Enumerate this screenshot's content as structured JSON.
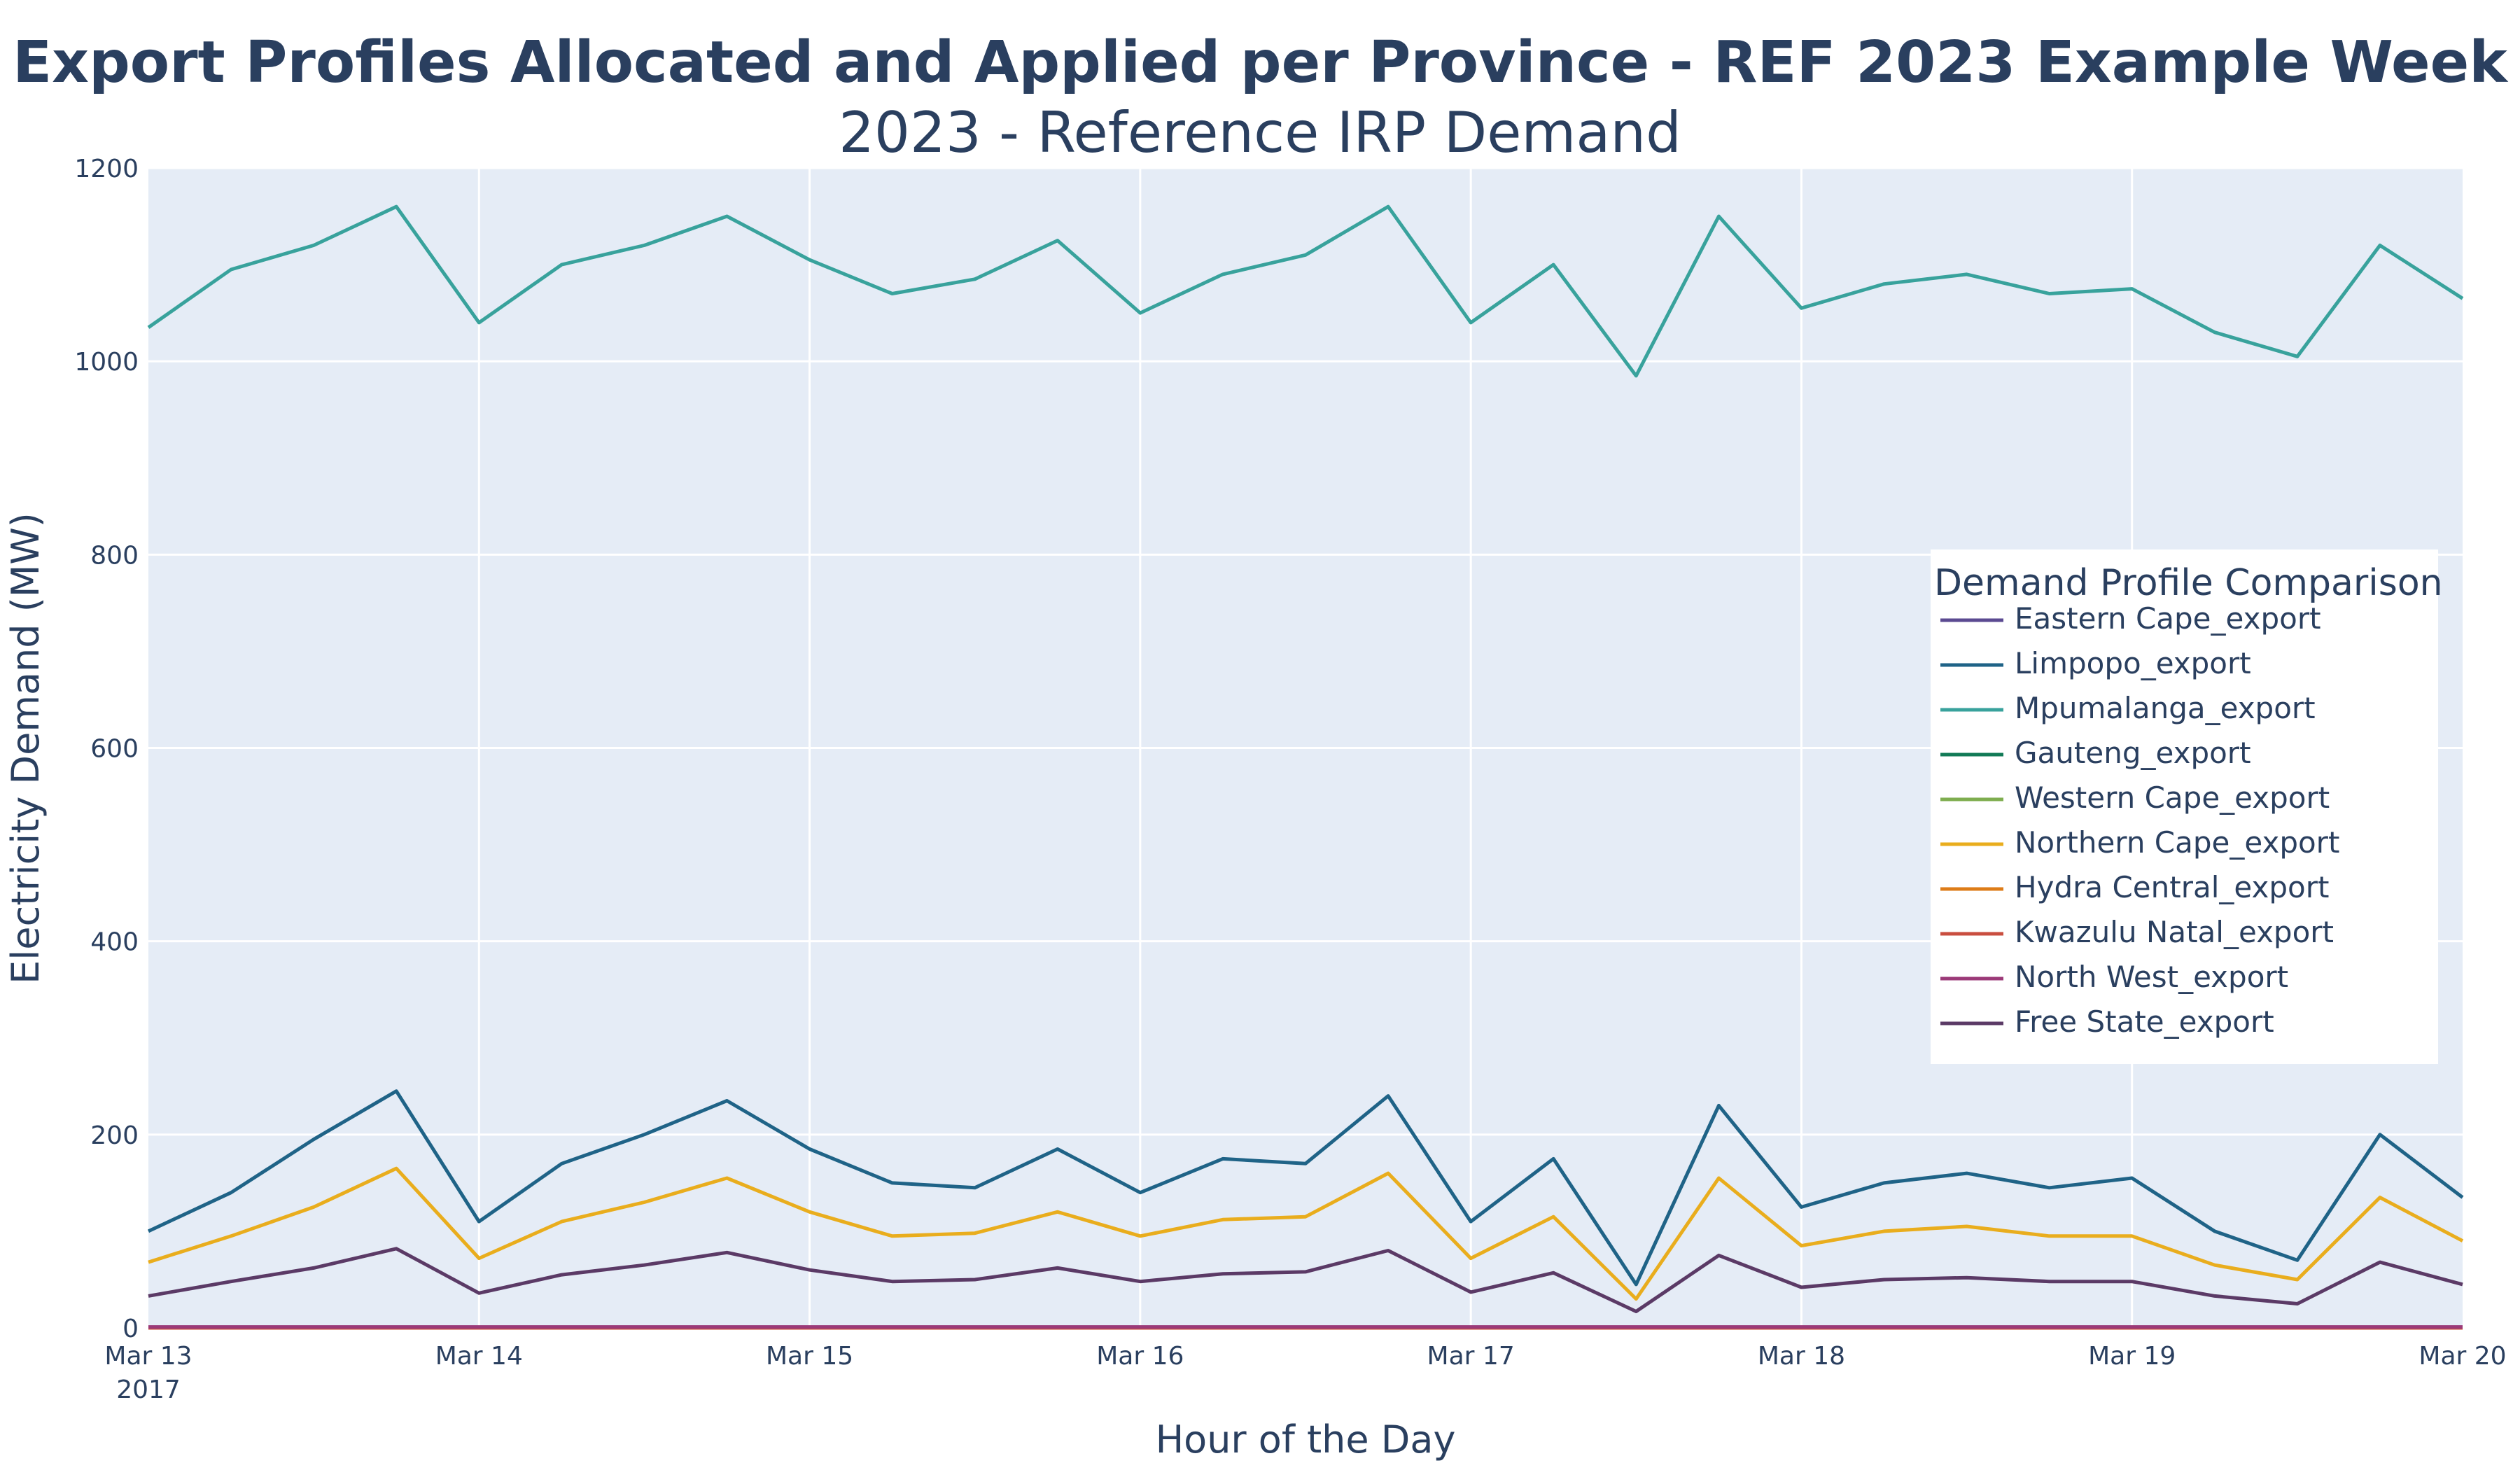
{
  "chart_data": {
    "type": "line",
    "title": "Export Profiles Allocated and Applied per Province - REF 2023 Example Week",
    "subtitle": "2023 - Reference IRP Demand",
    "xlabel": "Hour of the Day",
    "ylabel": "Electricity Demand (MW)",
    "ylim": [
      0,
      1200
    ],
    "yticks": [
      0,
      200,
      400,
      600,
      800,
      1000,
      1200
    ],
    "xlim": [
      "2017-03-13 00:00",
      "2017-03-20 00:00"
    ],
    "xticks": [
      {
        "label": "Mar 13",
        "sub": "2017",
        "at": "2017-03-13"
      },
      {
        "label": "Mar 14",
        "sub": "",
        "at": "2017-03-14"
      },
      {
        "label": "Mar 15",
        "sub": "",
        "at": "2017-03-15"
      },
      {
        "label": "Mar 16",
        "sub": "",
        "at": "2017-03-16"
      },
      {
        "label": "Mar 17",
        "sub": "",
        "at": "2017-03-17"
      },
      {
        "label": "Mar 18",
        "sub": "",
        "at": "2017-03-18"
      },
      {
        "label": "Mar 19",
        "sub": "",
        "at": "2017-03-19"
      },
      {
        "label": "Mar 20",
        "sub": "",
        "at": "2017-03-20"
      }
    ],
    "grid": true,
    "legend": {
      "title": "Demand Profile Comparison",
      "placement": "right-middle"
    },
    "x": [
      "2017-03-13 00:00",
      "2017-03-13 06:00",
      "2017-03-13 12:00",
      "2017-03-13 18:00",
      "2017-03-14 00:00",
      "2017-03-14 06:00",
      "2017-03-14 12:00",
      "2017-03-14 18:00",
      "2017-03-15 00:00",
      "2017-03-15 06:00",
      "2017-03-15 12:00",
      "2017-03-15 18:00",
      "2017-03-16 00:00",
      "2017-03-16 06:00",
      "2017-03-16 12:00",
      "2017-03-16 18:00",
      "2017-03-17 00:00",
      "2017-03-17 06:00",
      "2017-03-17 12:00",
      "2017-03-17 18:00",
      "2017-03-18 00:00",
      "2017-03-18 06:00",
      "2017-03-18 12:00",
      "2017-03-18 18:00",
      "2017-03-19 00:00",
      "2017-03-19 06:00",
      "2017-03-19 12:00",
      "2017-03-19 18:00",
      "2017-03-20 00:00"
    ],
    "series": [
      {
        "name": "Eastern Cape_export",
        "color": "#5b4a91",
        "values": [
          0,
          0,
          0,
          0,
          0,
          0,
          0,
          0,
          0,
          0,
          0,
          0,
          0,
          0,
          0,
          0,
          0,
          0,
          0,
          0,
          0,
          0,
          0,
          0,
          0,
          0,
          0,
          0,
          0
        ]
      },
      {
        "name": "Limpopo_export",
        "color": "#1f6387",
        "values": [
          100,
          140,
          195,
          245,
          110,
          170,
          200,
          235,
          185,
          150,
          145,
          185,
          140,
          175,
          170,
          240,
          110,
          175,
          45,
          230,
          125,
          150,
          160,
          145,
          155,
          100,
          70,
          200,
          135
        ]
      },
      {
        "name": "Mpumalanga_export",
        "color": "#38a29c",
        "values": [
          1035,
          1095,
          1120,
          1160,
          1040,
          1100,
          1120,
          1150,
          1105,
          1070,
          1085,
          1125,
          1050,
          1090,
          1110,
          1160,
          1040,
          1100,
          985,
          1150,
          1055,
          1080,
          1090,
          1070,
          1075,
          1030,
          1005,
          1120,
          1065
        ]
      },
      {
        "name": "Gauteng_export",
        "color": "#127a56",
        "values": [
          0,
          0,
          0,
          0,
          0,
          0,
          0,
          0,
          0,
          0,
          0,
          0,
          0,
          0,
          0,
          0,
          0,
          0,
          0,
          0,
          0,
          0,
          0,
          0,
          0,
          0,
          0,
          0,
          0
        ]
      },
      {
        "name": "Western Cape_export",
        "color": "#7ead4f",
        "values": [
          0,
          0,
          0,
          0,
          0,
          0,
          0,
          0,
          0,
          0,
          0,
          0,
          0,
          0,
          0,
          0,
          0,
          0,
          0,
          0,
          0,
          0,
          0,
          0,
          0,
          0,
          0,
          0,
          0
        ]
      },
      {
        "name": "Northern Cape_export",
        "color": "#e9ad1d",
        "values": [
          68,
          95,
          125,
          165,
          72,
          110,
          130,
          155,
          120,
          95,
          98,
          120,
          95,
          112,
          115,
          160,
          72,
          115,
          30,
          155,
          85,
          100,
          105,
          95,
          95,
          65,
          50,
          135,
          90
        ]
      },
      {
        "name": "Hydra Central_export",
        "color": "#dd7c18",
        "values": [
          0,
          0,
          0,
          0,
          0,
          0,
          0,
          0,
          0,
          0,
          0,
          0,
          0,
          0,
          0,
          0,
          0,
          0,
          0,
          0,
          0,
          0,
          0,
          0,
          0,
          0,
          0,
          0,
          0
        ]
      },
      {
        "name": "Kwazulu Natal_export",
        "color": "#c94e3f",
        "values": [
          0,
          0,
          0,
          0,
          0,
          0,
          0,
          0,
          0,
          0,
          0,
          0,
          0,
          0,
          0,
          0,
          0,
          0,
          0,
          0,
          0,
          0,
          0,
          0,
          0,
          0,
          0,
          0,
          0
        ]
      },
      {
        "name": "North West_export",
        "color": "#9b3a78",
        "values": [
          1,
          1,
          1,
          1,
          1,
          1,
          1,
          1,
          1,
          1,
          1,
          1,
          1,
          1,
          1,
          1,
          1,
          1,
          1,
          1,
          1,
          1,
          1,
          1,
          1,
          1,
          1,
          1,
          1
        ]
      },
      {
        "name": "Free State_export",
        "color": "#5b3a66",
        "values": [
          33,
          48,
          62,
          82,
          36,
          55,
          65,
          78,
          60,
          48,
          50,
          62,
          48,
          56,
          58,
          80,
          37,
          57,
          17,
          75,
          42,
          50,
          52,
          48,
          48,
          33,
          25,
          68,
          45
        ]
      }
    ]
  }
}
